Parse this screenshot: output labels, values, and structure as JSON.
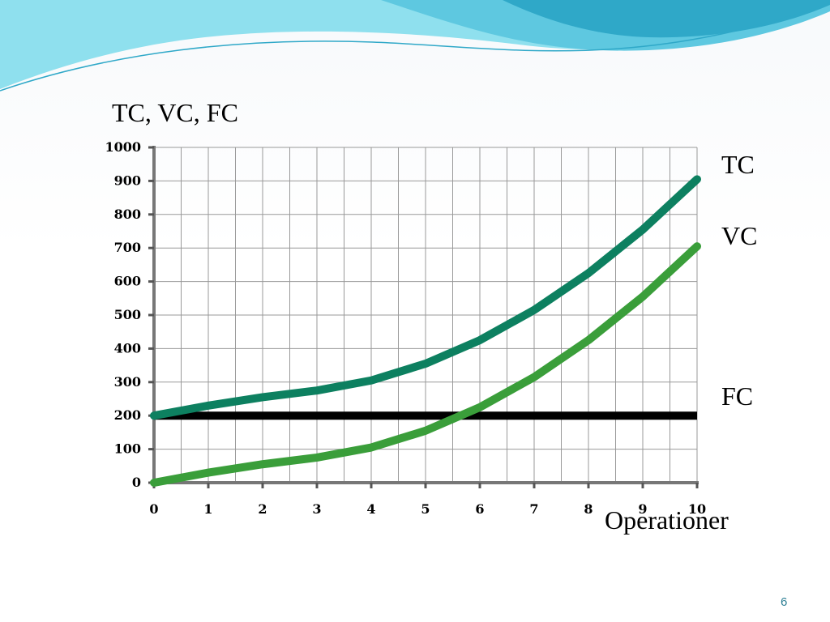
{
  "slide": {
    "page_number": "6"
  },
  "colors": {
    "tc": "#0d8060",
    "vc": "#3a9e3a",
    "fc": "#000000",
    "grid": "#999999",
    "wave_light": "#8fe0ee",
    "wave_mid": "#5ec8e0",
    "wave_dark": "#2fa8c8"
  },
  "chart_data": {
    "type": "line",
    "ylabel": "TC, VC, FC",
    "xlabel": "Operationer",
    "xlim": [
      0,
      10
    ],
    "ylim": [
      0,
      1000
    ],
    "x_ticks": [
      "0",
      "1",
      "2",
      "3",
      "4",
      "5",
      "6",
      "7",
      "8",
      "9",
      "10"
    ],
    "y_ticks": [
      "0",
      "100",
      "200",
      "300",
      "400",
      "500",
      "600",
      "700",
      "800",
      "900",
      "1000"
    ],
    "grid": true,
    "x": [
      0,
      1,
      2,
      3,
      4,
      5,
      6,
      7,
      8,
      9,
      10
    ],
    "series": [
      {
        "name": "TC",
        "values": [
          200,
          230,
          255,
          275,
          305,
          355,
          425,
          515,
          625,
          755,
          905
        ]
      },
      {
        "name": "VC",
        "values": [
          0,
          30,
          55,
          75,
          105,
          155,
          225,
          315,
          425,
          555,
          705
        ]
      },
      {
        "name": "FC",
        "values": [
          200,
          200,
          200,
          200,
          200,
          200,
          200,
          200,
          200,
          200,
          200
        ]
      }
    ]
  }
}
